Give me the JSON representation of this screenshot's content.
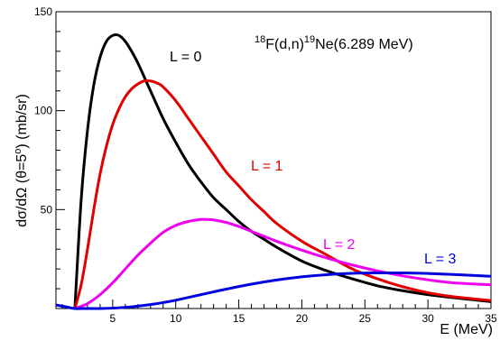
{
  "chart_data": {
    "type": "line",
    "title": "",
    "reaction": {
      "prefix_mass": "18",
      "target": "F(d,n)",
      "product_mass": "19",
      "product": "Ne(6.289 MeV)"
    },
    "xlabel": "E (MeV)",
    "ylabel": "dσ/dΩ (θ=5°)  (mb/sr)",
    "xlim": [
      0.5,
      35
    ],
    "ylim": [
      0,
      150
    ],
    "x_ticks": [
      5,
      10,
      15,
      20,
      25,
      30,
      35
    ],
    "y_ticks": [
      50,
      100,
      150
    ],
    "grid": false,
    "series": [
      {
        "name": "L = 0",
        "color": "#000000",
        "x": [
          2.0,
          2.5,
          3.0,
          3.5,
          4.0,
          4.5,
          5.0,
          5.5,
          6.0,
          6.5,
          7.0,
          8.0,
          9.0,
          10.0,
          11.0,
          12.0,
          13.0,
          14.0,
          15.0,
          16.0,
          17.0,
          18.0,
          20.0,
          22.0,
          24.0,
          26.0,
          28.0,
          30.0,
          32.0,
          35.0
        ],
        "y": [
          0,
          55,
          90,
          113,
          127,
          135,
          138,
          138,
          135,
          130,
          124,
          110,
          96,
          84,
          73,
          64,
          56,
          50,
          44,
          39,
          35,
          31,
          24,
          19,
          15,
          11.5,
          9,
          7,
          5.5,
          3.5
        ]
      },
      {
        "name": "L = 1",
        "color": "#e00000",
        "x": [
          2.0,
          2.5,
          3.0,
          3.5,
          4.0,
          4.5,
          5.0,
          5.5,
          6.0,
          6.5,
          7.0,
          7.5,
          8.0,
          8.5,
          9.0,
          10.0,
          11.0,
          12.0,
          13.0,
          14.0,
          15.0,
          16.0,
          17.0,
          18.0,
          20.0,
          22.0,
          24.0,
          26.0,
          28.0,
          30.0,
          32.0,
          35.0
        ],
        "y": [
          0,
          12,
          30,
          50,
          68,
          82,
          93,
          101,
          107,
          111,
          113.5,
          115,
          115,
          114,
          112,
          105,
          96,
          87,
          78,
          69,
          62,
          55,
          49,
          43,
          34,
          27,
          20,
          15,
          11,
          8,
          6,
          4
        ]
      },
      {
        "name": "L = 2",
        "color": "#ee00ee",
        "x": [
          2.0,
          3.0,
          4.0,
          5.0,
          6.0,
          7.0,
          8.0,
          9.0,
          10.0,
          11.0,
          12.0,
          12.5,
          13.0,
          14.0,
          15.0,
          16.0,
          17.0,
          18.0,
          20.0,
          22.0,
          24.0,
          26.0,
          28.0,
          30.0,
          32.0,
          35.0
        ],
        "y": [
          0,
          2.5,
          7,
          13,
          20,
          27,
          33,
          38.5,
          42,
          44,
          45,
          45,
          44.8,
          43.5,
          41.5,
          39,
          36.5,
          34,
          29.5,
          25.5,
          22,
          19,
          16.5,
          14.5,
          13,
          12
        ]
      },
      {
        "name": "L = 3",
        "color": "#0000dd",
        "x": [
          0.5,
          1.0,
          1.5,
          2.0,
          3.0,
          4.0,
          5.0,
          6.0,
          7.0,
          8.0,
          9.0,
          10.0,
          12.0,
          14.0,
          16.0,
          18.0,
          20.0,
          22.0,
          24.0,
          26.0,
          28.0,
          30.0,
          32.0,
          35.0
        ],
        "y": [
          1.8,
          1.2,
          0.6,
          0,
          0,
          0,
          0.2,
          0.6,
          1.2,
          2.0,
          3.0,
          4.2,
          7.0,
          9.8,
          12.3,
          14.4,
          16,
          17.1,
          17.8,
          18,
          18,
          17.7,
          17.2,
          16.3
        ]
      }
    ],
    "labels": {
      "l0": "L = 0",
      "l1": "L = 1",
      "l2": "L = 2",
      "l3": "L = 3"
    }
  }
}
